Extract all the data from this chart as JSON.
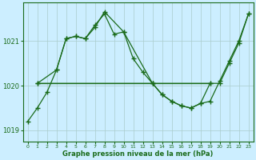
{
  "xlabel": "Graphe pression niveau de la mer (hPa)",
  "bg_color": "#cceeff",
  "grid_color_major": "#aacccc",
  "grid_color_minor": "#bbdddd",
  "line_color": "#1a6b1a",
  "xlim": [
    -0.5,
    23.5
  ],
  "ylim": [
    1018.75,
    1021.85
  ],
  "yticks": [
    1019,
    1020,
    1021
  ],
  "xticks": [
    0,
    1,
    2,
    3,
    4,
    5,
    6,
    7,
    8,
    9,
    10,
    11,
    12,
    13,
    14,
    15,
    16,
    17,
    18,
    19,
    20,
    21,
    22,
    23
  ],
  "s1x": [
    0,
    1,
    2,
    3,
    4,
    5,
    6,
    7,
    8,
    9,
    10,
    11,
    12,
    13,
    14,
    15,
    16,
    17,
    18,
    19,
    20,
    21,
    22,
    23
  ],
  "s1y": [
    1019.2,
    1019.5,
    1019.85,
    1020.35,
    1021.05,
    1021.1,
    1021.05,
    1021.35,
    1021.6,
    1021.15,
    1021.2,
    1020.6,
    1020.3,
    1020.05,
    1019.8,
    1019.65,
    1019.55,
    1019.5,
    1019.6,
    1019.65,
    1020.1,
    1020.55,
    1021.0,
    1021.6
  ],
  "s2x": [
    1,
    3,
    4,
    5,
    6,
    7,
    8,
    10,
    13,
    19,
    20,
    21,
    22,
    23
  ],
  "s2y": [
    1020.05,
    1020.35,
    1021.05,
    1021.1,
    1021.05,
    1021.3,
    1021.65,
    1021.2,
    1020.05,
    1020.05,
    1020.05,
    1020.5,
    1020.95,
    1021.6
  ],
  "s3x": [
    1,
    13,
    14,
    15,
    16,
    17,
    18,
    19
  ],
  "s3y": [
    1020.05,
    1020.05,
    1019.8,
    1019.65,
    1019.55,
    1019.5,
    1019.6,
    1020.05
  ],
  "s4x": [
    1,
    19
  ],
  "s4y": [
    1020.05,
    1020.05
  ]
}
